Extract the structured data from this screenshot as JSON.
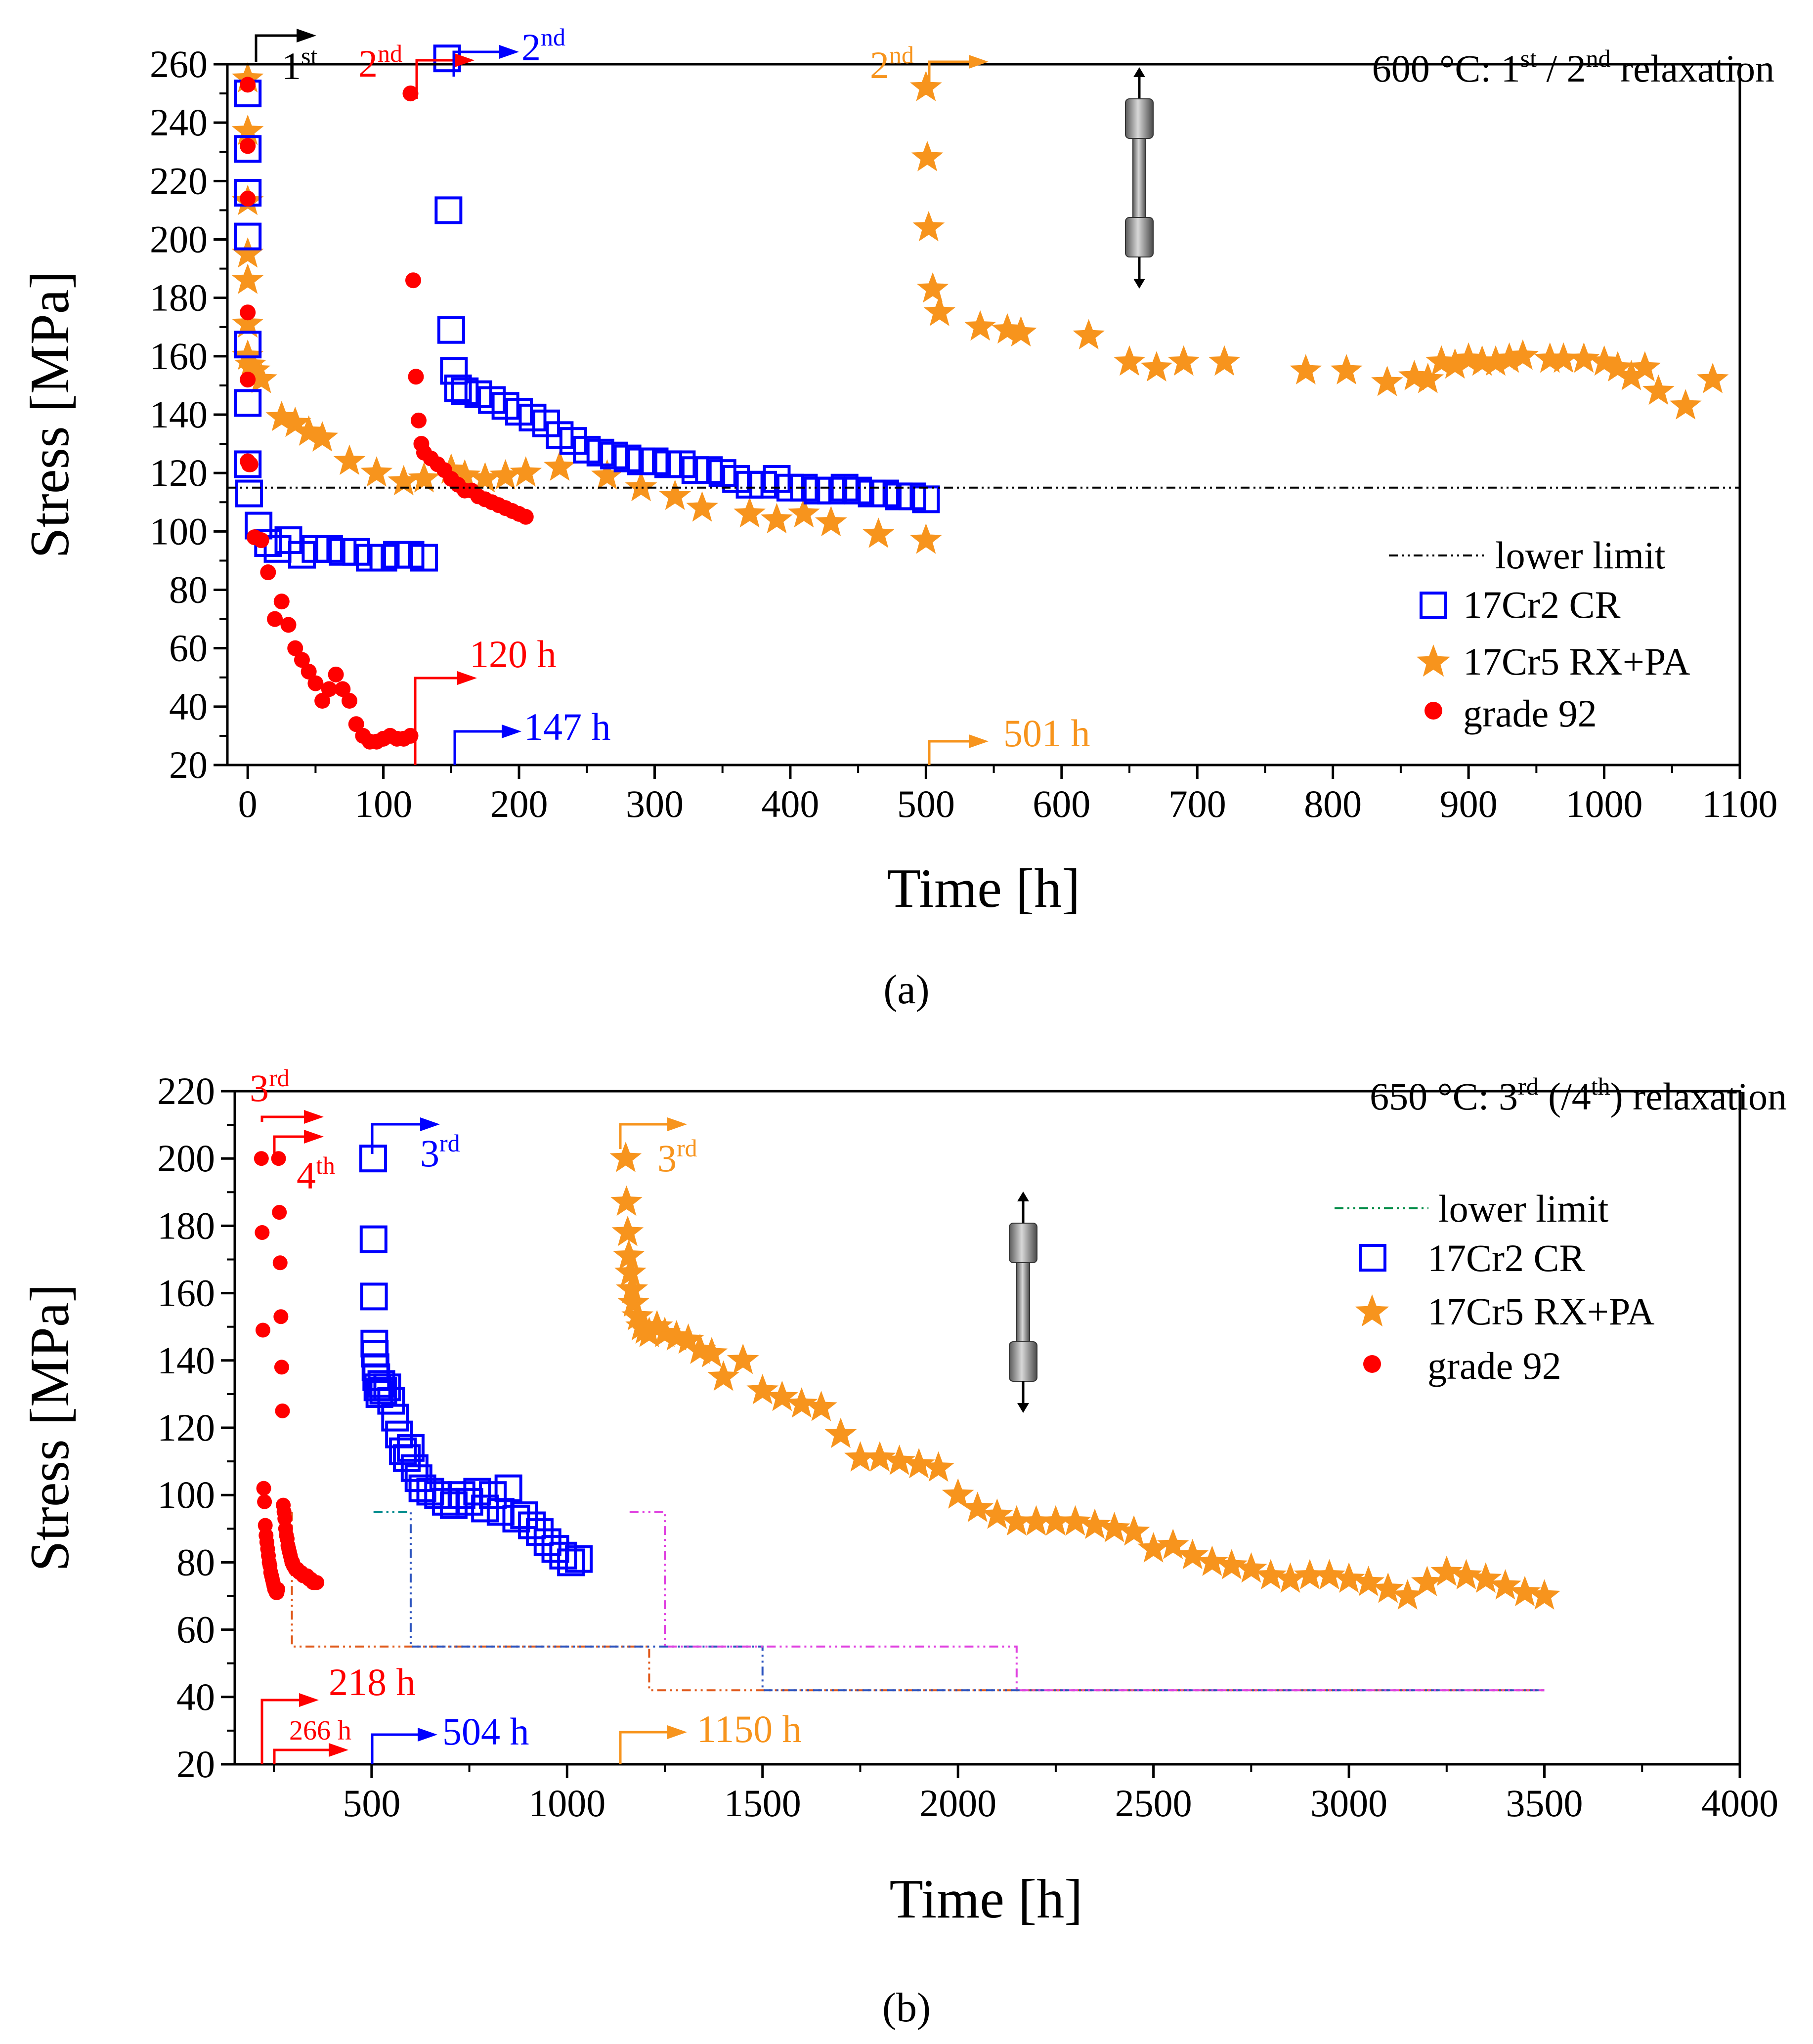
{
  "chart_data": [
    {
      "type": "scatter",
      "panel_label": "(a)",
      "title": "600 °C: 1st / 2nd relaxation",
      "title_parts": {
        "prefix": "600 °C: 1",
        "sup1": "st",
        "mid": " / 2",
        "sup2": "nd",
        "suffix": " relaxation"
      },
      "xlabel": "Time [h]",
      "ylabel": "Stress [MPa]",
      "xlim": [
        -15,
        1100
      ],
      "ylim": [
        20,
        260
      ],
      "xticks": [
        0,
        100,
        200,
        300,
        400,
        500,
        600,
        700,
        800,
        900,
        1000,
        1100
      ],
      "yticks": [
        20,
        40,
        60,
        80,
        100,
        120,
        140,
        160,
        180,
        200,
        220,
        240,
        260
      ],
      "legend": [
        {
          "key": "lower_limit",
          "label": "lower limit"
        },
        {
          "key": "cr",
          "label": "17Cr2 CR"
        },
        {
          "key": "rx",
          "label": "17Cr5 RX+PA"
        },
        {
          "key": "g92",
          "label": "grade 92"
        }
      ],
      "lower_limit": {
        "y": 115,
        "x": [
          -15,
          1100
        ]
      },
      "series": [
        {
          "key": "cr",
          "name": "17Cr2 CR",
          "marker": "square",
          "color": "#0000FF",
          "x": [
            0,
            0,
            0,
            0,
            0,
            0,
            0,
            1,
            8,
            15,
            22,
            30,
            40,
            50,
            60,
            70,
            80,
            90,
            100,
            110,
            120,
            130,
            147,
            148,
            150,
            152,
            155,
            160,
            170,
            180,
            190,
            200,
            210,
            220,
            230,
            240,
            250,
            260,
            270,
            280,
            290,
            300,
            310,
            320,
            330,
            340,
            350,
            360,
            370,
            380,
            390,
            400,
            410,
            420,
            430,
            440,
            450,
            460,
            470,
            480,
            490,
            500
          ],
          "y": [
            250,
            231,
            216,
            201,
            164,
            144,
            123,
            113,
            102,
            96,
            94,
            97,
            92,
            94,
            94,
            93,
            93,
            91,
            91,
            92,
            92,
            91,
            262,
            210,
            169,
            155,
            149,
            148,
            147,
            145,
            143,
            141,
            139,
            137,
            133,
            131,
            128,
            127,
            126,
            125,
            124,
            124,
            123,
            123,
            121,
            121,
            120,
            118,
            116,
            116,
            118,
            115,
            115,
            114,
            114,
            115,
            114,
            113,
            113,
            112,
            112,
            111
          ]
        },
        {
          "key": "rx",
          "name": "17Cr5 RX+PA",
          "marker": "star",
          "color": "#F7941D",
          "x": [
            0,
            0,
            0,
            0,
            0,
            0,
            0,
            2,
            5,
            10,
            25,
            35,
            45,
            55,
            75,
            95,
            115,
            130,
            150,
            160,
            175,
            190,
            205,
            230,
            265,
            290,
            315,
            335,
            370,
            390,
            410,
            430,
            465,
            500,
            500,
            501,
            502,
            505,
            510,
            540,
            560,
            570,
            620,
            650,
            670,
            690,
            720,
            780,
            810,
            840,
            860,
            870,
            880,
            890,
            900,
            910,
            920,
            930,
            940,
            960,
            970,
            985,
            1000,
            1010,
            1020,
            1030,
            1040,
            1060,
            1080
          ],
          "y": [
            255,
            237,
            213,
            195,
            186,
            171,
            160,
            157,
            155,
            152,
            139,
            137,
            134,
            132,
            124,
            120,
            117,
            118,
            121,
            119,
            118,
            119,
            120,
            122,
            119,
            115,
            112,
            108,
            106,
            104,
            106,
            103,
            99,
            97,
            252,
            228,
            204,
            183,
            175,
            170,
            169,
            168,
            167,
            158,
            156,
            158,
            158,
            155,
            155,
            151,
            153,
            152,
            158,
            157,
            159,
            158,
            158,
            159,
            160,
            159,
            159,
            159,
            158,
            156,
            153,
            156,
            148,
            143,
            152
          ]
        },
        {
          "key": "g92",
          "name": "grade 92",
          "marker": "circle",
          "color": "#FF0000",
          "x": [
            0,
            0,
            0,
            0,
            0,
            0,
            1,
            2,
            5,
            10,
            15,
            20,
            25,
            30,
            35,
            40,
            45,
            50,
            55,
            60,
            65,
            70,
            75,
            80,
            85,
            90,
            95,
            100,
            105,
            110,
            115,
            120,
            120,
            122,
            124,
            126,
            128,
            130,
            135,
            140,
            145,
            150,
            155,
            160,
            165,
            170,
            175,
            180,
            185,
            190,
            195,
            200,
            205
          ],
          "y": [
            253,
            232,
            214,
            175,
            152,
            124,
            123,
            123,
            98,
            97,
            86,
            70,
            76,
            68,
            60,
            56,
            52,
            48,
            42,
            46,
            51,
            46,
            42,
            34,
            30,
            28,
            28,
            29,
            30,
            29,
            29,
            30,
            250,
            186,
            153,
            138,
            130,
            127,
            125,
            123,
            121,
            118,
            116,
            114,
            114,
            112,
            111,
            110,
            109,
            108,
            107,
            106,
            105
          ]
        }
      ],
      "annotations": {
        "first_start_label": "1",
        "first_start_sup": "st",
        "g92_second_label": "2",
        "g92_second_sup": "nd",
        "cr_second_label": "2",
        "cr_second_sup": "nd",
        "rx_second_label": "2",
        "rx_second_sup": "nd",
        "g92_time": "120 h",
        "cr_time": "147 h",
        "rx_time": "501 h"
      }
    },
    {
      "type": "scatter",
      "panel_label": "(b)",
      "title": "650 °C: 3rd (/4th) relaxation",
      "title_parts": {
        "prefix": "650 °C: 3",
        "sup1": "rd",
        "mid": " (/4",
        "sup2": "th",
        "suffix": ") relaxation"
      },
      "xlabel": "Time [h]",
      "ylabel": "Stress [MPa]",
      "xlim": [
        150,
        4000
      ],
      "ylim": [
        20,
        220
      ],
      "xticks": [
        500,
        1000,
        1500,
        2000,
        2500,
        3000,
        3500,
        4000
      ],
      "yticks": [
        20,
        40,
        60,
        80,
        100,
        120,
        140,
        160,
        180,
        200,
        220
      ],
      "legend": [
        {
          "key": "lower_limit",
          "label": "lower limit"
        },
        {
          "key": "cr",
          "label": "17Cr2 CR"
        },
        {
          "key": "rx",
          "label": "17Cr5 RX+PA"
        },
        {
          "key": "g92",
          "label": "grade 92"
        }
      ],
      "lower_limit_steps": [
        {
          "color": "#E05A1C",
          "x": [
            296,
            296,
            365,
            365,
            1210,
            1210,
            3500
          ],
          "y": [
            95,
            55,
            55,
            55,
            55,
            42,
            42
          ]
        },
        {
          "color": "#2A52BE",
          "x": [
            505,
            600,
            600,
            1500,
            1500,
            3500
          ],
          "y": [
            95,
            95,
            55,
            55,
            42,
            42
          ]
        },
        {
          "color": "#008B8B",
          "x": [
            505,
            600
          ],
          "y": [
            95,
            95
          ]
        },
        {
          "color": "#E040E0",
          "x": [
            1160,
            1250,
            1250,
            2150,
            2150,
            3500
          ],
          "y": [
            95,
            95,
            55,
            55,
            42,
            42
          ]
        }
      ],
      "series": [
        {
          "key": "cr",
          "name": "17Cr2 CR",
          "marker": "square",
          "color": "#0000FF",
          "x": [
            504,
            505,
            506,
            507,
            508,
            510,
            512,
            515,
            520,
            525,
            530,
            540,
            550,
            560,
            570,
            580,
            590,
            600,
            610,
            620,
            630,
            650,
            670,
            690,
            710,
            730,
            750,
            770,
            790,
            810,
            830,
            850,
            870,
            890,
            910,
            930,
            950,
            970,
            990,
            1010,
            1030
          ],
          "y": [
            200,
            176,
            159,
            145,
            142,
            138,
            135,
            132,
            130,
            133,
            131,
            132,
            128,
            123,
            118,
            113,
            111,
            114,
            108,
            105,
            102,
            101,
            100,
            98,
            97,
            100,
            98,
            101,
            96,
            100,
            95,
            102,
            93,
            94,
            91,
            89,
            86,
            84,
            82,
            80,
            81
          ]
        },
        {
          "key": "rx",
          "name": "17Cr5 RX+PA",
          "marker": "star",
          "color": "#F7941D",
          "x": [
            1150,
            1152,
            1155,
            1158,
            1162,
            1166,
            1170,
            1180,
            1190,
            1200,
            1210,
            1230,
            1250,
            1280,
            1310,
            1340,
            1370,
            1400,
            1450,
            1500,
            1550,
            1600,
            1650,
            1700,
            1750,
            1800,
            1850,
            1900,
            1950,
            2000,
            2050,
            2100,
            2150,
            2200,
            2250,
            2300,
            2350,
            2400,
            2450,
            2500,
            2550,
            2600,
            2650,
            2700,
            2750,
            2800,
            2850,
            2900,
            2950,
            3000,
            3050,
            3100,
            3150,
            3200,
            3250,
            3300,
            3350,
            3400,
            3450,
            3500
          ],
          "y": [
            200,
            187,
            178,
            171,
            166,
            161,
            157,
            153,
            150,
            149,
            148,
            150,
            148,
            147,
            146,
            143,
            142,
            135,
            140,
            131,
            129,
            127,
            126,
            118,
            111,
            111,
            110,
            109,
            108,
            100,
            96,
            94,
            92,
            92,
            92,
            92,
            91,
            90,
            89,
            84,
            85,
            82,
            80,
            79,
            78,
            76,
            75,
            76,
            76,
            75,
            74,
            72,
            70,
            74,
            77,
            76,
            75,
            73,
            71,
            70
          ]
        },
        {
          "key": "g92",
          "name": "grade 92",
          "marker": "circle",
          "color": "#FF0000",
          "x": [
            218,
            220,
            222,
            224,
            226,
            228,
            230,
            232,
            234,
            236,
            238,
            240,
            242,
            244,
            246,
            248,
            250,
            252,
            254,
            256,
            258,
            260,
            262,
            264,
            266,
            268,
            270,
            272,
            274,
            276,
            278,
            280,
            282,
            284,
            286,
            288,
            290,
            292,
            294,
            296,
            298,
            300,
            305,
            310,
            315,
            320,
            325,
            330,
            335,
            340,
            345,
            350,
            355,
            360
          ],
          "y": [
            200,
            178,
            149,
            102,
            98,
            91,
            88,
            86,
            84,
            82,
            80,
            79,
            77,
            76,
            75,
            74,
            73,
            72,
            72,
            71,
            71,
            72,
            200,
            184,
            169,
            153,
            138,
            125,
            97,
            95,
            93,
            90,
            88,
            87,
            85,
            84,
            83,
            82,
            81,
            80,
            80,
            79,
            78,
            78,
            77,
            77,
            76,
            76,
            76,
            75,
            75,
            74,
            74,
            74
          ]
        }
      ],
      "annotations": {
        "g92_third_label": "3",
        "g92_third_sup": "rd",
        "g92_fourth_label": "4",
        "g92_fourth_sup": "th",
        "cr_third_label": "3",
        "cr_third_sup": "rd",
        "rx_third_label": "3",
        "rx_third_sup": "rd",
        "g92_time_1": "218 h",
        "g92_time_2": "266 h",
        "cr_time": "504 h",
        "rx_time": "1150 h"
      }
    }
  ]
}
